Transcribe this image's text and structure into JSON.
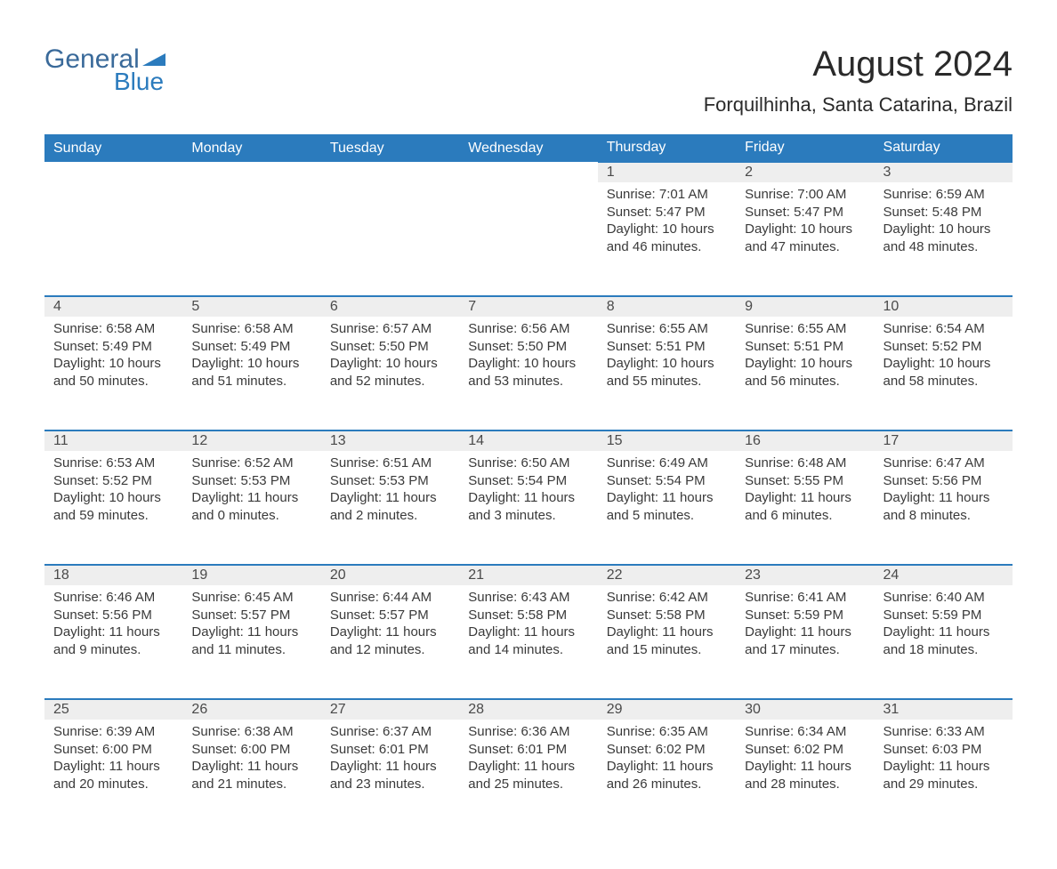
{
  "logo": {
    "text1": "General",
    "text2": "Blue"
  },
  "title": "August 2024",
  "location": "Forquilhinha, Santa Catarina, Brazil",
  "colors": {
    "header_bg": "#2b7bbd",
    "header_text": "#ffffff",
    "daynum_bg": "#eeeeee",
    "row_border": "#2b7bbd",
    "body_text": "#3a3a3a",
    "logo_color": "#2b7bbd"
  },
  "columns": [
    "Sunday",
    "Monday",
    "Tuesday",
    "Wednesday",
    "Thursday",
    "Friday",
    "Saturday"
  ],
  "weeks": [
    [
      null,
      null,
      null,
      null,
      {
        "d": "1",
        "sr": "7:01 AM",
        "ss": "5:47 PM",
        "dl": "10 hours and 46 minutes."
      },
      {
        "d": "2",
        "sr": "7:00 AM",
        "ss": "5:47 PM",
        "dl": "10 hours and 47 minutes."
      },
      {
        "d": "3",
        "sr": "6:59 AM",
        "ss": "5:48 PM",
        "dl": "10 hours and 48 minutes."
      }
    ],
    [
      {
        "d": "4",
        "sr": "6:58 AM",
        "ss": "5:49 PM",
        "dl": "10 hours and 50 minutes."
      },
      {
        "d": "5",
        "sr": "6:58 AM",
        "ss": "5:49 PM",
        "dl": "10 hours and 51 minutes."
      },
      {
        "d": "6",
        "sr": "6:57 AM",
        "ss": "5:50 PM",
        "dl": "10 hours and 52 minutes."
      },
      {
        "d": "7",
        "sr": "6:56 AM",
        "ss": "5:50 PM",
        "dl": "10 hours and 53 minutes."
      },
      {
        "d": "8",
        "sr": "6:55 AM",
        "ss": "5:51 PM",
        "dl": "10 hours and 55 minutes."
      },
      {
        "d": "9",
        "sr": "6:55 AM",
        "ss": "5:51 PM",
        "dl": "10 hours and 56 minutes."
      },
      {
        "d": "10",
        "sr": "6:54 AM",
        "ss": "5:52 PM",
        "dl": "10 hours and 58 minutes."
      }
    ],
    [
      {
        "d": "11",
        "sr": "6:53 AM",
        "ss": "5:52 PM",
        "dl": "10 hours and 59 minutes."
      },
      {
        "d": "12",
        "sr": "6:52 AM",
        "ss": "5:53 PM",
        "dl": "11 hours and 0 minutes."
      },
      {
        "d": "13",
        "sr": "6:51 AM",
        "ss": "5:53 PM",
        "dl": "11 hours and 2 minutes."
      },
      {
        "d": "14",
        "sr": "6:50 AM",
        "ss": "5:54 PM",
        "dl": "11 hours and 3 minutes."
      },
      {
        "d": "15",
        "sr": "6:49 AM",
        "ss": "5:54 PM",
        "dl": "11 hours and 5 minutes."
      },
      {
        "d": "16",
        "sr": "6:48 AM",
        "ss": "5:55 PM",
        "dl": "11 hours and 6 minutes."
      },
      {
        "d": "17",
        "sr": "6:47 AM",
        "ss": "5:56 PM",
        "dl": "11 hours and 8 minutes."
      }
    ],
    [
      {
        "d": "18",
        "sr": "6:46 AM",
        "ss": "5:56 PM",
        "dl": "11 hours and 9 minutes."
      },
      {
        "d": "19",
        "sr": "6:45 AM",
        "ss": "5:57 PM",
        "dl": "11 hours and 11 minutes."
      },
      {
        "d": "20",
        "sr": "6:44 AM",
        "ss": "5:57 PM",
        "dl": "11 hours and 12 minutes."
      },
      {
        "d": "21",
        "sr": "6:43 AM",
        "ss": "5:58 PM",
        "dl": "11 hours and 14 minutes."
      },
      {
        "d": "22",
        "sr": "6:42 AM",
        "ss": "5:58 PM",
        "dl": "11 hours and 15 minutes."
      },
      {
        "d": "23",
        "sr": "6:41 AM",
        "ss": "5:59 PM",
        "dl": "11 hours and 17 minutes."
      },
      {
        "d": "24",
        "sr": "6:40 AM",
        "ss": "5:59 PM",
        "dl": "11 hours and 18 minutes."
      }
    ],
    [
      {
        "d": "25",
        "sr": "6:39 AM",
        "ss": "6:00 PM",
        "dl": "11 hours and 20 minutes."
      },
      {
        "d": "26",
        "sr": "6:38 AM",
        "ss": "6:00 PM",
        "dl": "11 hours and 21 minutes."
      },
      {
        "d": "27",
        "sr": "6:37 AM",
        "ss": "6:01 PM",
        "dl": "11 hours and 23 minutes."
      },
      {
        "d": "28",
        "sr": "6:36 AM",
        "ss": "6:01 PM",
        "dl": "11 hours and 25 minutes."
      },
      {
        "d": "29",
        "sr": "6:35 AM",
        "ss": "6:02 PM",
        "dl": "11 hours and 26 minutes."
      },
      {
        "d": "30",
        "sr": "6:34 AM",
        "ss": "6:02 PM",
        "dl": "11 hours and 28 minutes."
      },
      {
        "d": "31",
        "sr": "6:33 AM",
        "ss": "6:03 PM",
        "dl": "11 hours and 29 minutes."
      }
    ]
  ],
  "labels": {
    "sunrise": "Sunrise: ",
    "sunset": "Sunset: ",
    "daylight": "Daylight: "
  }
}
